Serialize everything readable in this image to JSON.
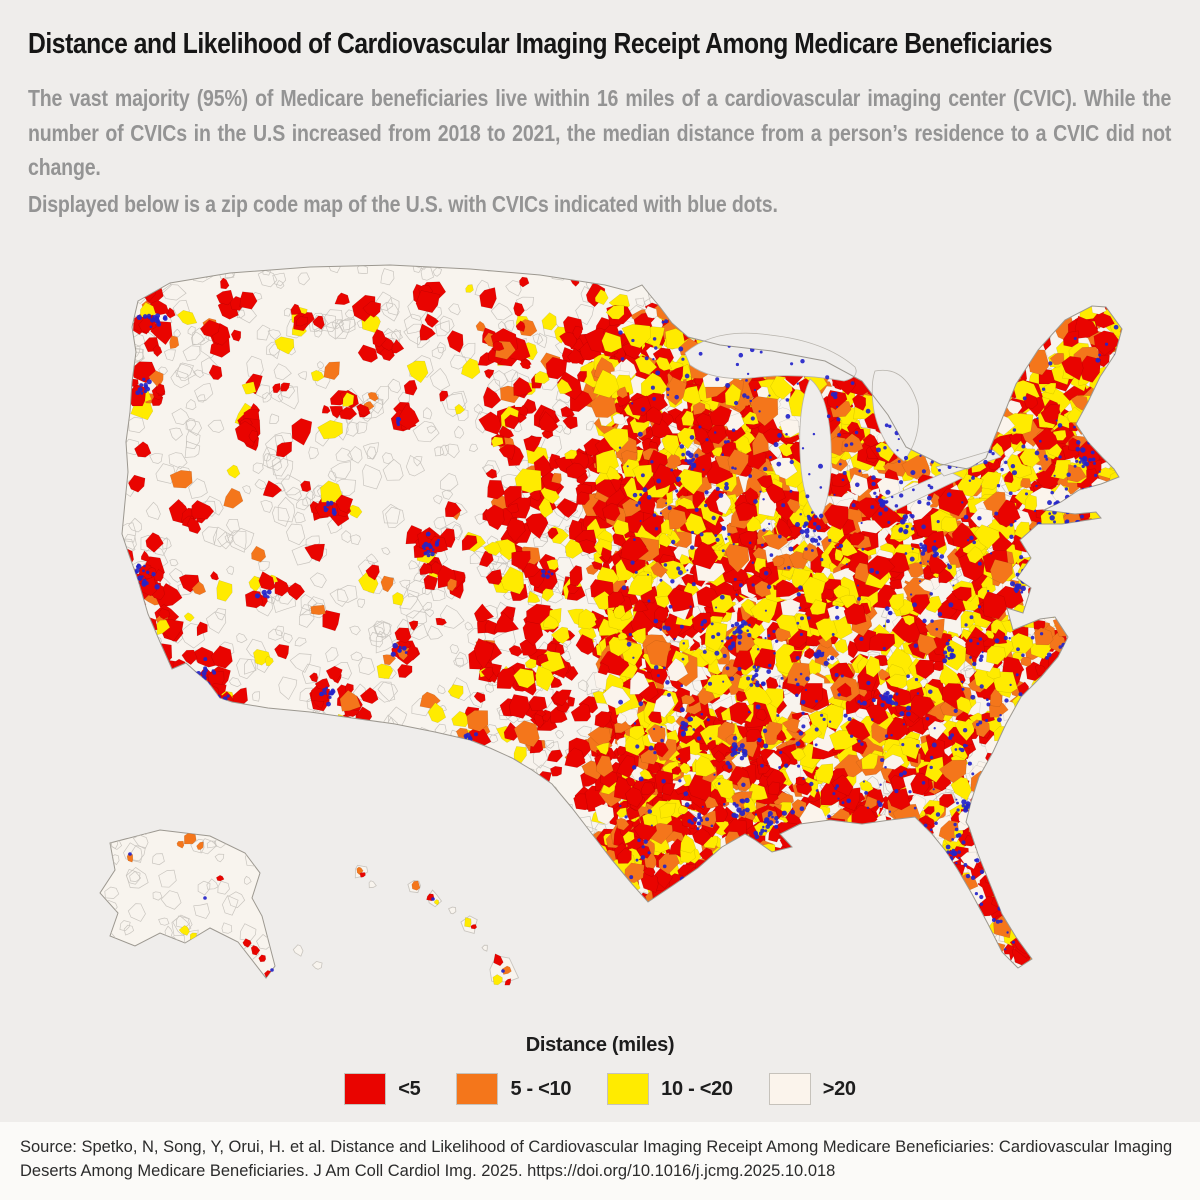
{
  "header": {
    "title": "Distance and Likelihood of Cardiovascular Imaging Receipt Among Medicare Beneficiaries",
    "paragraph1": "The vast majority (95%) of Medicare beneficiaries live within 16 miles of a cardiovascular imaging center (CVIC). While the number of CVICs in the U.S increased from 2018 to 2021, the median distance from a person’s residence to a CVIC did not change.",
    "paragraph2": "Displayed below is a zip code map of the U.S. with CVICs indicated with blue dots."
  },
  "legend": {
    "title": "Distance (miles)",
    "items": [
      {
        "label": "<5",
        "color": "#e90400"
      },
      {
        "label": "5 - <10",
        "color": "#f4761b"
      },
      {
        "label": "10 - <20",
        "color": "#ffeb00"
      },
      {
        "label": ">20",
        "color": "#fbf4ec"
      }
    ]
  },
  "map": {
    "description": "Zip code choropleth map of the U.S. colored by distance to nearest cardiovascular imaging center, with CVIC locations shown as blue dots",
    "cvic_dot_color": "#2424c9",
    "land_color": "#f8f4ee",
    "boundary_color": "#c9c5bf",
    "outline_color": "#9c9890",
    "background_color": "#efedeb"
  },
  "footer": {
    "source": "Source: Spetko, N, Song, Y, Orui, H. et al. Distance and Likelihood of Cardiovascular Imaging Receipt Among Medicare Beneficiaries: Cardiovascular Imaging Deserts Among Medicare Beneficiaries. J Am Coll Cardiol Img. 2025. https://doi.org/10.1016/j.jcmg.2025.10.018"
  }
}
